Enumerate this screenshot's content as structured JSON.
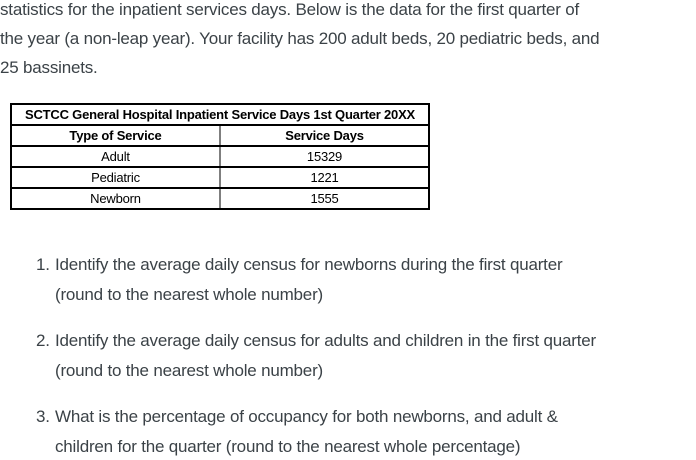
{
  "intro": {
    "lines": [
      "statistics for the inpatient services days. Below is the data for the first quarter of",
      "the year (a non-leap year). Your facility has 200 adult beds, 20 pediatric beds, and",
      "25 bassinets."
    ]
  },
  "table": {
    "title": "SCTCC General Hospital Inpatient Service Days 1st Quarter 20XX",
    "headers": [
      "Type of Service",
      "Service Days"
    ],
    "rows": [
      {
        "type": "Adult",
        "days": "15329"
      },
      {
        "type": "Pediatric",
        "days": "1221"
      },
      {
        "type": "Newborn",
        "days": "1555"
      }
    ]
  },
  "questions": [
    {
      "number": "1.",
      "lines": [
        "Identify the average daily census for newborns during the first quarter",
        "(round to the nearest whole number)"
      ]
    },
    {
      "number": "2.",
      "lines": [
        "Identify the average daily census for adults and children in the first quarter",
        "(round to the nearest whole number)"
      ]
    },
    {
      "number": "3.",
      "lines": [
        "What is the percentage of occupancy for both newborns, and adult &",
        "children for the quarter (round to the nearest whole percentage)"
      ]
    }
  ],
  "colors": {
    "body_text": "#3b4247",
    "table_text": "#000000",
    "table_border": "#000000",
    "table_divider": "#7f7f7f",
    "background": "#ffffff"
  }
}
